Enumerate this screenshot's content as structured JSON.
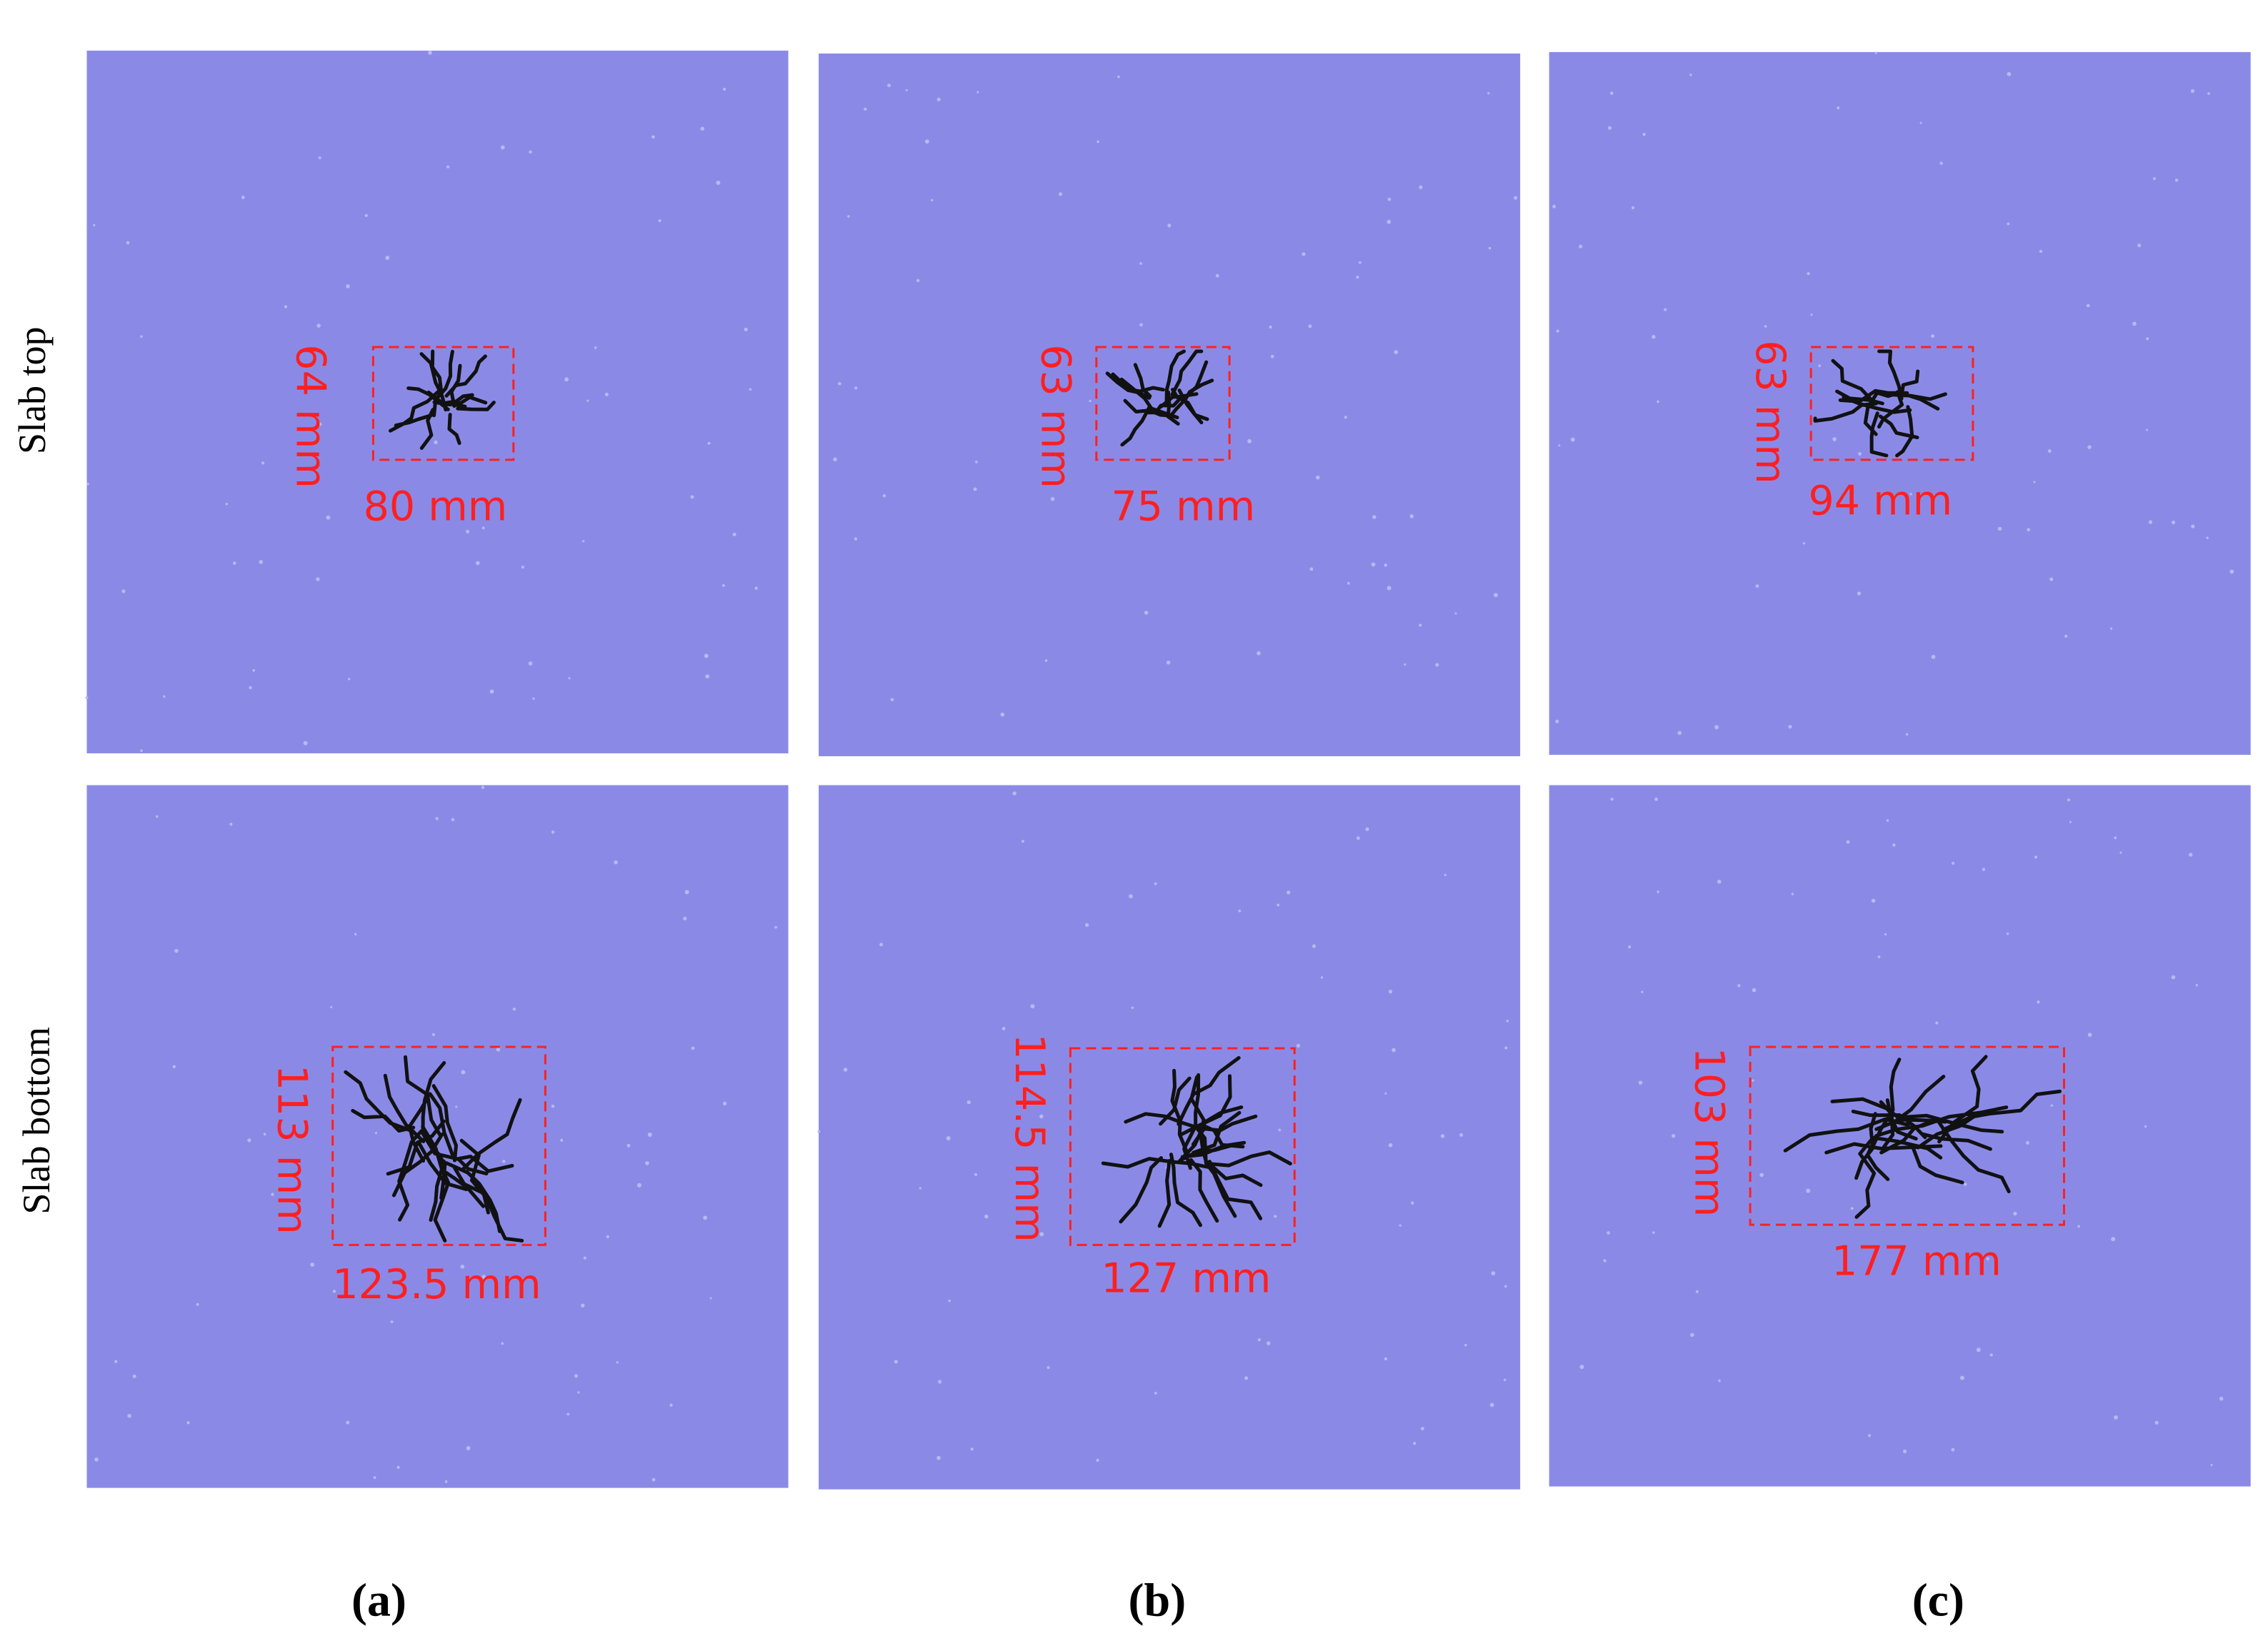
{
  "row_labels": [
    "Slab top",
    "Slab bottom"
  ],
  "column_labels": [
    "(a)",
    "(b)",
    "(c)"
  ],
  "panels": [
    {
      "height": "64 mm",
      "width": "80 mm"
    },
    {
      "height": "63 mm",
      "width": "75 mm"
    },
    {
      "height": "63 mm",
      "width": "94 mm"
    },
    {
      "height": "113 mm",
      "width": "123.5 mm"
    },
    {
      "height": "114.5 mm",
      "width": "127 mm"
    },
    {
      "height": "103 mm",
      "width": "177 mm"
    }
  ]
}
